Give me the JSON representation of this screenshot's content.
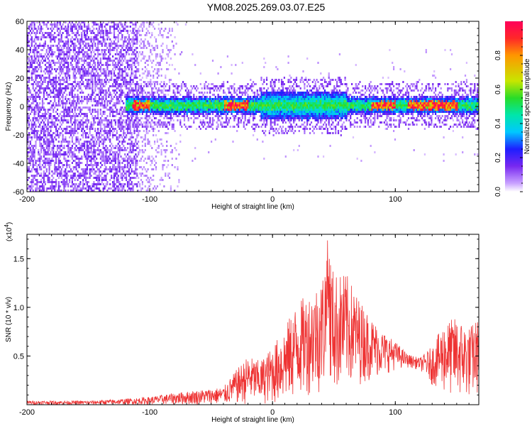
{
  "page_title": "YM08.2025.269.03.07.E25",
  "chart_data": [
    {
      "type": "heatmap",
      "title": "YM08.2025.269.03.07.E25",
      "xlabel": "Height of straight line (km)",
      "ylabel": "Frequency (Hz)",
      "xlim": [
        -200,
        168
      ],
      "ylim": [
        -60,
        60
      ],
      "xticks": [
        "-200",
        "-100",
        "0",
        "100"
      ],
      "yticks": [
        "60",
        "40",
        "20",
        "0",
        "-20",
        "-40",
        "-60"
      ],
      "xtick_values": [
        -200,
        -100,
        0,
        100
      ],
      "ytick_values": [
        60,
        40,
        20,
        0,
        -20,
        -40,
        -60
      ],
      "colorbar": {
        "label": "Normalized spectral amplitude",
        "range": [
          0,
          1
        ],
        "ticks": [
          "0.0",
          "0.2",
          "0.4",
          "0.6",
          "0.8"
        ],
        "tick_values": [
          0,
          0.2,
          0.4,
          0.6,
          0.8
        ],
        "colormap": "rainbow"
      },
      "band": {
        "center_hz": 0,
        "strong_ranges_km": [
          [
            -115,
            -100
          ],
          [
            -40,
            -20
          ],
          [
            80,
            100
          ],
          [
            110,
            150
          ]
        ],
        "noise_region_km": [
          -200,
          -110
        ],
        "sparse_region_km": [
          -110,
          -70
        ]
      },
      "colors": {
        "low": "#7a2cf0",
        "mid": "#00d0d0",
        "high": "#ff2020"
      }
    },
    {
      "type": "line",
      "xlabel": "Height of straight line (km)",
      "ylabel": "SNR (10 * v/v)",
      "y_multiplier": "(x10",
      "y_multiplier_exp": "4",
      "y_multiplier_close": ")",
      "xlim": [
        -200,
        168
      ],
      "ylim": [
        0,
        1.75
      ],
      "xticks": [
        "-200",
        "-100",
        "0",
        "100"
      ],
      "yticks": [
        "0.5",
        "1.0",
        "1.5"
      ],
      "xtick_values": [
        -200,
        -100,
        0,
        100
      ],
      "ytick_values": [
        0.5,
        1.0,
        1.5
      ],
      "series": [
        {
          "color": "#ee3333",
          "envelope_x": [
            -200,
            -150,
            -120,
            -100,
            -80,
            -60,
            -40,
            -30,
            -20,
            -10,
            0,
            10,
            20,
            30,
            40,
            45,
            50,
            60,
            70,
            80,
            90,
            100,
            110,
            120,
            130,
            140,
            150,
            160,
            168
          ],
          "envelope_upper": [
            0.04,
            0.04,
            0.06,
            0.08,
            0.12,
            0.15,
            0.18,
            0.35,
            0.5,
            0.45,
            0.6,
            0.8,
            1.05,
            1.15,
            1.3,
            1.72,
            1.35,
            1.35,
            1.1,
            0.9,
            0.75,
            0.65,
            0.52,
            0.48,
            0.6,
            0.85,
            0.9,
            0.8,
            0.9
          ],
          "envelope_lower": [
            0.0,
            0.0,
            0.0,
            0.0,
            0.0,
            0.0,
            0.0,
            0.0,
            0.0,
            0.0,
            0.0,
            0.0,
            0.05,
            0.1,
            0.1,
            0.1,
            0.1,
            0.15,
            0.2,
            0.25,
            0.3,
            0.36,
            0.38,
            0.36,
            0.2,
            0.1,
            0.05,
            0.05,
            0.1
          ]
        }
      ]
    }
  ]
}
